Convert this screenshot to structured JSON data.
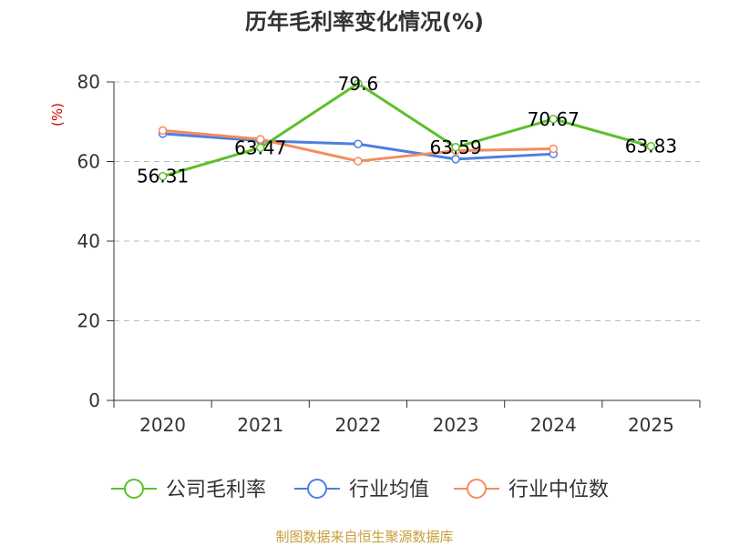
{
  "colors": {
    "title": "#333333",
    "unit": "#cc0000",
    "source": "#c8a03c",
    "axis": "#333333",
    "grid": "#bbbbbb"
  },
  "chart_data": {
    "type": "line",
    "title": "历年毛利率变化情况(%)",
    "ylabel": "(%)",
    "xlabel": "",
    "categories": [
      "2020",
      "2021",
      "2022",
      "2023",
      "2024",
      "2025"
    ],
    "ylim": [
      0,
      80
    ],
    "yticks": [
      0,
      20,
      40,
      60,
      80
    ],
    "grid": true,
    "legend_position": "bottom",
    "series": [
      {
        "name": "公司毛利率",
        "color": "#5cc02b",
        "values": [
          56.31,
          63.47,
          79.6,
          63.59,
          70.67,
          63.83
        ],
        "labels": [
          "56.31",
          "63.47",
          "79.6",
          "63.59",
          "70.67",
          "63.83"
        ]
      },
      {
        "name": "行业均值",
        "color": "#4e7fe0",
        "values": [
          67.0,
          65.2,
          64.4,
          60.6,
          61.9,
          null
        ]
      },
      {
        "name": "行业中位数",
        "color": "#f58b5d",
        "values": [
          67.8,
          65.6,
          60.1,
          62.7,
          63.2,
          null
        ]
      }
    ]
  },
  "source": "制图数据来自恒生聚源数据库"
}
